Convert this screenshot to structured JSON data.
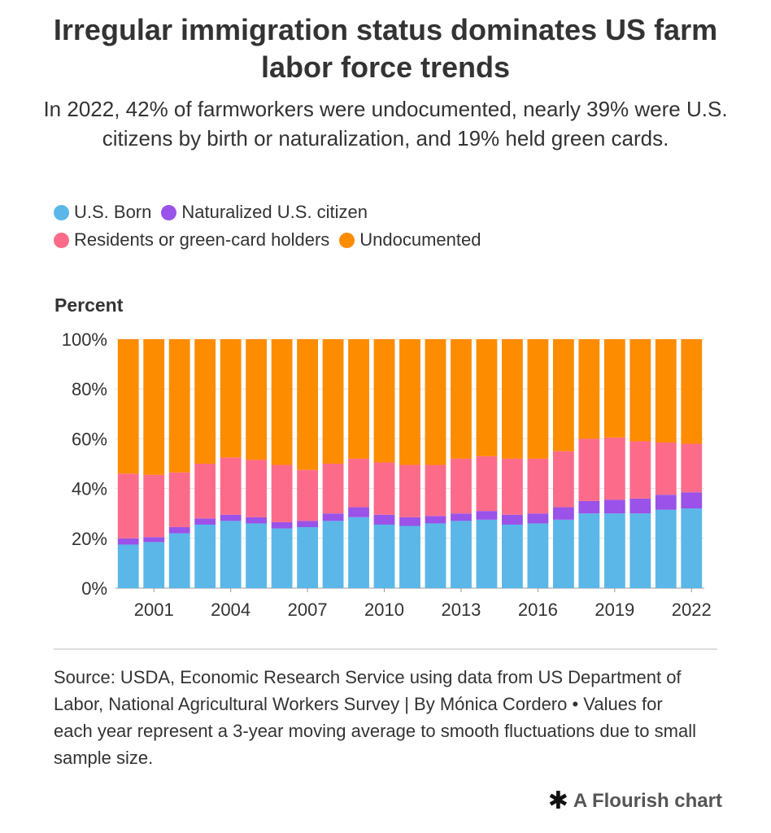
{
  "title": "Irregular immigration status dominates US farm labor force trends",
  "subtitle": "In 2022, 42% of farmworkers were undocumented, nearly 39% were U.S. citizens by birth or naturalization, and 19% held green cards.",
  "legend": [
    {
      "label": "U.S. Born",
      "color": "#5ab7e8"
    },
    {
      "label": "Naturalized U.S. citizen",
      "color": "#9a52e8"
    },
    {
      "label": "Residents or green-card holders",
      "color": "#fd6b8a"
    },
    {
      "label": "Undocumented",
      "color": "#fd8c00"
    }
  ],
  "source_text": "Source: USDA, Economic Research Service using data from US Department of Labor, National Agricultural Workers Survey | By Mónica Cordero • Values for each year represent a 3-year moving average to smooth fluctuations due to small sample size.",
  "brand": {
    "icon": "flourish-asterisk-icon",
    "label": "A Flourish chart"
  },
  "chart_data": {
    "type": "bar",
    "stacked": true,
    "ylabel": "Percent",
    "ylim": [
      0,
      100
    ],
    "yticks": [
      "0%",
      "20%",
      "40%",
      "60%",
      "80%",
      "100%"
    ],
    "xtick_labels": [
      "2001",
      "2004",
      "2007",
      "2010",
      "2013",
      "2016",
      "2019",
      "2022"
    ],
    "grid": true,
    "legend_position": "top-left",
    "categories": [
      "2000",
      "2001",
      "2002",
      "2003",
      "2004",
      "2005",
      "2006",
      "2007",
      "2008",
      "2009",
      "2010",
      "2011",
      "2012",
      "2013",
      "2014",
      "2015",
      "2016",
      "2017",
      "2018",
      "2019",
      "2020",
      "2021",
      "2022"
    ],
    "series": [
      {
        "name": "U.S. Born",
        "color": "#5ab7e8",
        "values": [
          17.5,
          18.5,
          22,
          25.5,
          27,
          26,
          24,
          24.5,
          27,
          28.5,
          25.5,
          25,
          26,
          27,
          27.5,
          25.5,
          26,
          27.5,
          30,
          30,
          30,
          31.5,
          32
        ]
      },
      {
        "name": "Naturalized U.S. citizen",
        "color": "#9a52e8",
        "values": [
          2.5,
          2,
          2.5,
          2.5,
          2.5,
          2.5,
          2.5,
          2.5,
          3,
          4,
          4,
          3.5,
          3,
          3,
          3.5,
          4,
          4,
          5,
          5,
          5.5,
          6,
          6,
          6.5
        ]
      },
      {
        "name": "Residents or green-card holders",
        "color": "#fd6b8a",
        "values": [
          26,
          25,
          22,
          22,
          23,
          23,
          23,
          20.5,
          20,
          19.5,
          21,
          21,
          20.5,
          22,
          22,
          22.5,
          22,
          22.5,
          25,
          25,
          23,
          21,
          19.5
        ]
      },
      {
        "name": "Undocumented",
        "color": "#fd8c00",
        "values": [
          54,
          54.5,
          53.5,
          50,
          47.5,
          48.5,
          50.5,
          52.5,
          50,
          48,
          49.5,
          50.5,
          50.5,
          48,
          47,
          48,
          48,
          45,
          40,
          39.5,
          41,
          41.5,
          42
        ]
      }
    ]
  }
}
